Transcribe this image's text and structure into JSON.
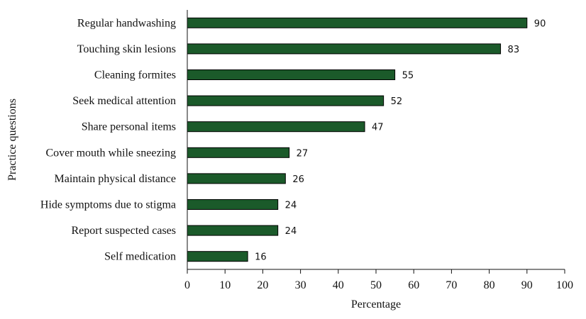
{
  "chart_data": {
    "type": "bar",
    "orientation": "horizontal",
    "categories": [
      "Regular handwashing",
      "Touching skin lesions",
      "Cleaning formites",
      "Seek medical attention",
      "Share personal items",
      "Cover mouth while sneezing",
      "Maintain physical distance",
      "Hide symptoms due to stigma",
      "Report suspected cases",
      "Self medication"
    ],
    "values": [
      90,
      83,
      55,
      52,
      47,
      27,
      26,
      24,
      24,
      16
    ],
    "xlabel": "Percentage",
    "ylabel": "Practice questions",
    "xlim": [
      0,
      100
    ],
    "xticks": [
      0,
      10,
      20,
      30,
      40,
      50,
      60,
      70,
      80,
      90,
      100
    ],
    "grid": false,
    "legend": "none",
    "bar_color": "#1b5a2a",
    "data_labels": true
  }
}
